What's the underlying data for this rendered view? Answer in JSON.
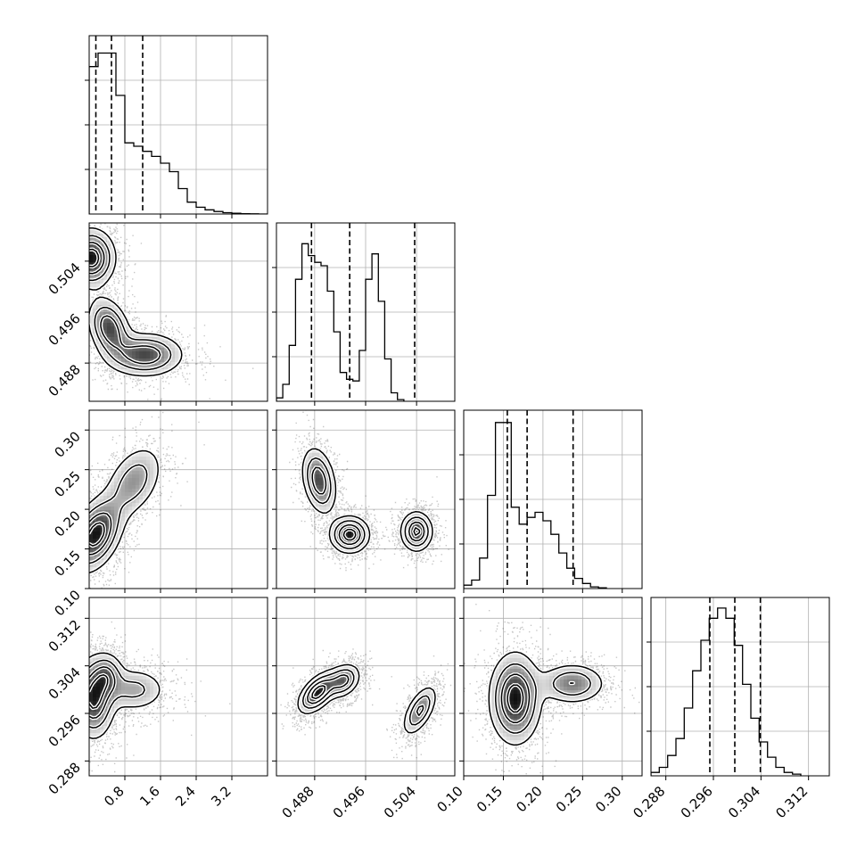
{
  "chart_data": {
    "type": "corner",
    "title": "",
    "parameters": [
      {
        "range": [
          0.0,
          4.0
        ],
        "ticks": [
          0.8,
          1.6,
          2.4,
          3.2
        ],
        "tick_labels": [
          "0.8",
          "1.6",
          "2.4",
          "3.2"
        ]
      },
      {
        "range": [
          0.482,
          0.51
        ],
        "ticks": [
          0.488,
          0.496,
          0.504
        ],
        "tick_labels": [
          "0.488",
          "0.496",
          "0.504"
        ]
      },
      {
        "range": [
          0.1,
          0.325
        ],
        "ticks": [
          0.1,
          0.15,
          0.2,
          0.25,
          0.3
        ],
        "tick_labels": [
          "0.10",
          "0.15",
          "0.20",
          "0.25",
          "0.30"
        ]
      },
      {
        "range": [
          0.2855,
          0.3155
        ],
        "ticks": [
          0.288,
          0.296,
          0.304,
          0.312
        ],
        "tick_labels": [
          "0.288",
          "0.296",
          "0.304",
          "0.312"
        ]
      }
    ],
    "histograms": [
      {
        "param": 0,
        "bin_edges_start": 0.0,
        "bin_width": 0.2,
        "counts": [
          0.87,
          0.95,
          0.95,
          0.7,
          0.42,
          0.4,
          0.37,
          0.34,
          0.3,
          0.25,
          0.15,
          0.07,
          0.04,
          0.025,
          0.015,
          0.008,
          0.004,
          0.002,
          0.001,
          0.0
        ],
        "quantiles": [
          0.15,
          0.5,
          1.2
        ]
      },
      {
        "param": 1,
        "bin_edges_start": 0.482,
        "bin_width": 0.001,
        "counts": [
          0.02,
          0.1,
          0.33,
          0.72,
          0.93,
          0.86,
          0.82,
          0.8,
          0.65,
          0.41,
          0.17,
          0.13,
          0.12,
          0.3,
          0.72,
          0.87,
          0.59,
          0.25,
          0.05,
          0.01
        ],
        "quantiles": [
          0.4875,
          0.4935,
          0.5037
        ]
      },
      {
        "param": 2,
        "bin_edges_start": 0.1,
        "bin_width": 0.01,
        "counts": [
          0.02,
          0.05,
          0.18,
          0.55,
          0.98,
          0.98,
          0.48,
          0.38,
          0.42,
          0.45,
          0.4,
          0.32,
          0.21,
          0.12,
          0.06,
          0.03,
          0.01,
          0.004
        ],
        "quantiles": [
          0.155,
          0.18,
          0.238
        ]
      },
      {
        "param": 3,
        "bin_edges_start": 0.2855,
        "bin_width": 0.0014,
        "counts": [
          0.02,
          0.05,
          0.12,
          0.22,
          0.4,
          0.62,
          0.8,
          0.93,
          0.99,
          0.93,
          0.77,
          0.54,
          0.34,
          0.2,
          0.11,
          0.05,
          0.02,
          0.01
        ],
        "quantiles": [
          0.2954,
          0.2996,
          0.3039
        ]
      }
    ],
    "pairs": [
      {
        "x": 0,
        "y": 1,
        "modes": [
          {
            "cx": 0.05,
            "cy": 0.5045,
            "sx": 0.28,
            "sy": 0.0024,
            "w": 1.0,
            "rho": 0.0
          },
          {
            "cx": 0.45,
            "cy": 0.4935,
            "sx": 0.25,
            "sy": 0.0025,
            "w": 0.8,
            "rho": -0.3
          },
          {
            "cx": 1.25,
            "cy": 0.4893,
            "sx": 0.45,
            "sy": 0.0018,
            "w": 0.8,
            "rho": 0.0
          }
        ]
      },
      {
        "x": 0,
        "y": 2,
        "modes": [
          {
            "cx": 0.15,
            "cy": 0.168,
            "sx": 0.32,
            "sy": 0.025,
            "w": 1.0,
            "rho": 0.4
          },
          {
            "cx": 1.0,
            "cy": 0.235,
            "sx": 0.35,
            "sy": 0.025,
            "w": 0.5,
            "rho": 0.4
          }
        ]
      },
      {
        "x": 0,
        "y": 3,
        "modes": [
          {
            "cx": 0.1,
            "cy": 0.2985,
            "sx": 0.25,
            "sy": 0.0035,
            "w": 1.0,
            "rho": 0.0
          },
          {
            "cx": 0.4,
            "cy": 0.3025,
            "sx": 0.2,
            "sy": 0.002,
            "w": 0.55,
            "rho": 0.0
          },
          {
            "cx": 1.0,
            "cy": 0.3,
            "sx": 0.4,
            "sy": 0.002,
            "w": 0.45,
            "rho": 0.0
          }
        ]
      },
      {
        "x": 1,
        "y": 2,
        "modes": [
          {
            "cx": 0.4887,
            "cy": 0.236,
            "sx": 0.0014,
            "sy": 0.022,
            "w": 0.8,
            "rho": -0.3
          },
          {
            "cx": 0.4935,
            "cy": 0.168,
            "sx": 0.0016,
            "sy": 0.012,
            "w": 1.0,
            "rho": 0.0
          },
          {
            "cx": 0.504,
            "cy": 0.172,
            "sx": 0.0013,
            "sy": 0.013,
            "w": 0.9,
            "rho": 0.0
          }
        ]
      },
      {
        "x": 1,
        "y": 3,
        "modes": [
          {
            "cx": 0.4885,
            "cy": 0.2995,
            "sx": 0.0016,
            "sy": 0.0018,
            "w": 1.0,
            "rho": 0.55
          },
          {
            "cx": 0.4925,
            "cy": 0.3015,
            "sx": 0.0014,
            "sy": 0.0015,
            "w": 0.7,
            "rho": 0.3
          },
          {
            "cx": 0.5045,
            "cy": 0.2965,
            "sx": 0.0014,
            "sy": 0.0022,
            "w": 0.65,
            "rho": 0.6
          }
        ]
      },
      {
        "x": 2,
        "y": 3,
        "modes": [
          {
            "cx": 0.165,
            "cy": 0.2985,
            "sx": 0.017,
            "sy": 0.004,
            "w": 1.0,
            "rho": 0.0
          },
          {
            "cx": 0.237,
            "cy": 0.301,
            "sx": 0.022,
            "sy": 0.0018,
            "w": 0.6,
            "rho": 0.0
          }
        ]
      }
    ],
    "contour_levels": [
      0.15,
      0.35,
      0.6,
      0.85
    ],
    "grid": true,
    "legend": "none"
  }
}
